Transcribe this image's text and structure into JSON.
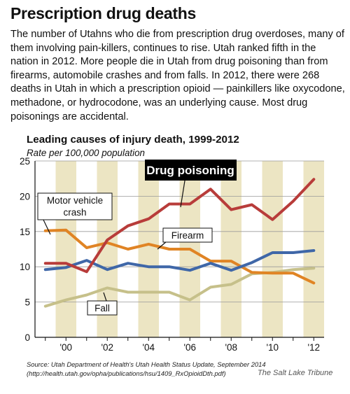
{
  "headline": "Prescription drug deaths",
  "intro": "The number of Utahns who die from prescription drug overdoses, many of them involving pain-killers, continues to rise. Utah ranked fifth in the nation in 2012. More people die in Utah from drug poisoning than from firearms, automobile crashes and from falls. In 2012, there were 268 deaths in Utah in which a prescription opioid — painkillers like oxycodone, methadone, or hydrocodone, was an underlying cause. Most drug poisonings are accidental.",
  "chart_data": {
    "type": "line",
    "title": "Leading causes of injury death, 1999-2012",
    "ylabel": "Rate per 100,000 population",
    "xlabel": "",
    "x": [
      1999,
      2000,
      2001,
      2002,
      2003,
      2004,
      2005,
      2006,
      2007,
      2008,
      2009,
      2010,
      2011,
      2012
    ],
    "xticklabels": [
      "'00",
      "'02",
      "'04",
      "'06",
      "'08",
      "'10",
      "'12"
    ],
    "xtickvalues": [
      2000,
      2002,
      2004,
      2006,
      2008,
      2010,
      2012
    ],
    "ylim": [
      0,
      25
    ],
    "yticks": [
      0,
      5,
      10,
      15,
      20,
      25
    ],
    "series": [
      {
        "name": "Drug poisoning",
        "color": "#b83c3a",
        "values": [
          10.5,
          10.5,
          9.3,
          13.8,
          15.8,
          16.8,
          18.9,
          18.9,
          21.0,
          18.1,
          18.8,
          16.7,
          19.3,
          22.4
        ]
      },
      {
        "name": "Motor vehicle crash",
        "color": "#e08424",
        "values": [
          15.1,
          15.2,
          12.7,
          13.4,
          12.5,
          13.2,
          12.5,
          12.5,
          10.8,
          10.8,
          9.2,
          9.1,
          9.1,
          7.7
        ]
      },
      {
        "name": "Firearm",
        "color": "#3f67a8",
        "values": [
          9.6,
          9.9,
          10.9,
          9.6,
          10.5,
          10.0,
          10.0,
          9.5,
          10.5,
          9.5,
          10.6,
          12.0,
          12.0,
          12.3
        ]
      },
      {
        "name": "Fall",
        "color": "#c6c08a",
        "values": [
          4.4,
          5.3,
          6.0,
          7.0,
          6.4,
          6.4,
          6.4,
          5.3,
          7.1,
          7.5,
          9.0,
          9.2,
          9.6,
          9.8
        ]
      }
    ],
    "band_color": "#ece5c3",
    "grid": true
  },
  "labels": {
    "drug": "Drug poisoning",
    "motor_1": "Motor vehicle",
    "motor_2": "crash",
    "firearm": "Firearm",
    "fall": "Fall"
  },
  "source_line1": "Source: Utah Department of Health's Utah Health Status Update, September 2014",
  "source_line2": "(http://health.utah.gov/opha/publications/hsu/1409_RxOpioidDth.pdf)",
  "credit": "The Salt Lake Tribune"
}
